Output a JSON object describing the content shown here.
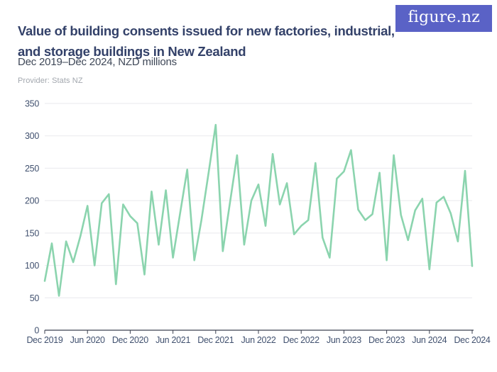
{
  "header": {
    "title": "Value of building consents issued for new factories, industrial, and storage buildings in New Zealand",
    "subtitle": "Dec 2019–Dec 2024, NZD millions",
    "provider": "Provider: Stats NZ",
    "logo_text": "figure.nz"
  },
  "colors": {
    "accent_line": "#8bd4ae",
    "logo_bg": "#5a62c6",
    "title_text": "#334169",
    "subtitle_text": "#3e4757",
    "provider_text": "#a2a7ae",
    "axis_label": "#41516f",
    "gridline": "#e9e9ed",
    "axis_line": "#3c4150"
  },
  "chart_data": {
    "type": "line",
    "title": "Value of building consents issued for new factories, industrial, and storage buildings in New Zealand",
    "unit": "NZD millions",
    "x_start": "Dec 2019",
    "x_end": "Dec 2024",
    "frequency": "monthly",
    "x_tick_labels": [
      "Dec 2019",
      "Jun 2020",
      "Dec 2020",
      "Jun 2021",
      "Dec 2021",
      "Jun 2022",
      "Dec 2022",
      "Jun 2023",
      "Dec 2023",
      "Jun 2024",
      "Dec 2024"
    ],
    "x_tick_month_indices": [
      0,
      6,
      12,
      18,
      24,
      30,
      36,
      42,
      48,
      54,
      60
    ],
    "y_ticks": [
      0,
      50,
      100,
      150,
      200,
      250,
      300,
      350
    ],
    "ylim": [
      0,
      350
    ],
    "grid": "horizontal",
    "legend": "none",
    "values": [
      76,
      134,
      53,
      137,
      105,
      145,
      192,
      100,
      196,
      210,
      71,
      194,
      176,
      165,
      86,
      214,
      132,
      216,
      112,
      180,
      248,
      108,
      170,
      243,
      317,
      122,
      197,
      270,
      132,
      200,
      225,
      161,
      272,
      194,
      227,
      148,
      161,
      170,
      258,
      143,
      112,
      234,
      245,
      278,
      186,
      170,
      179,
      243,
      108,
      270,
      178,
      139,
      185,
      203,
      94,
      197,
      206,
      180,
      137,
      246,
      99
    ]
  }
}
